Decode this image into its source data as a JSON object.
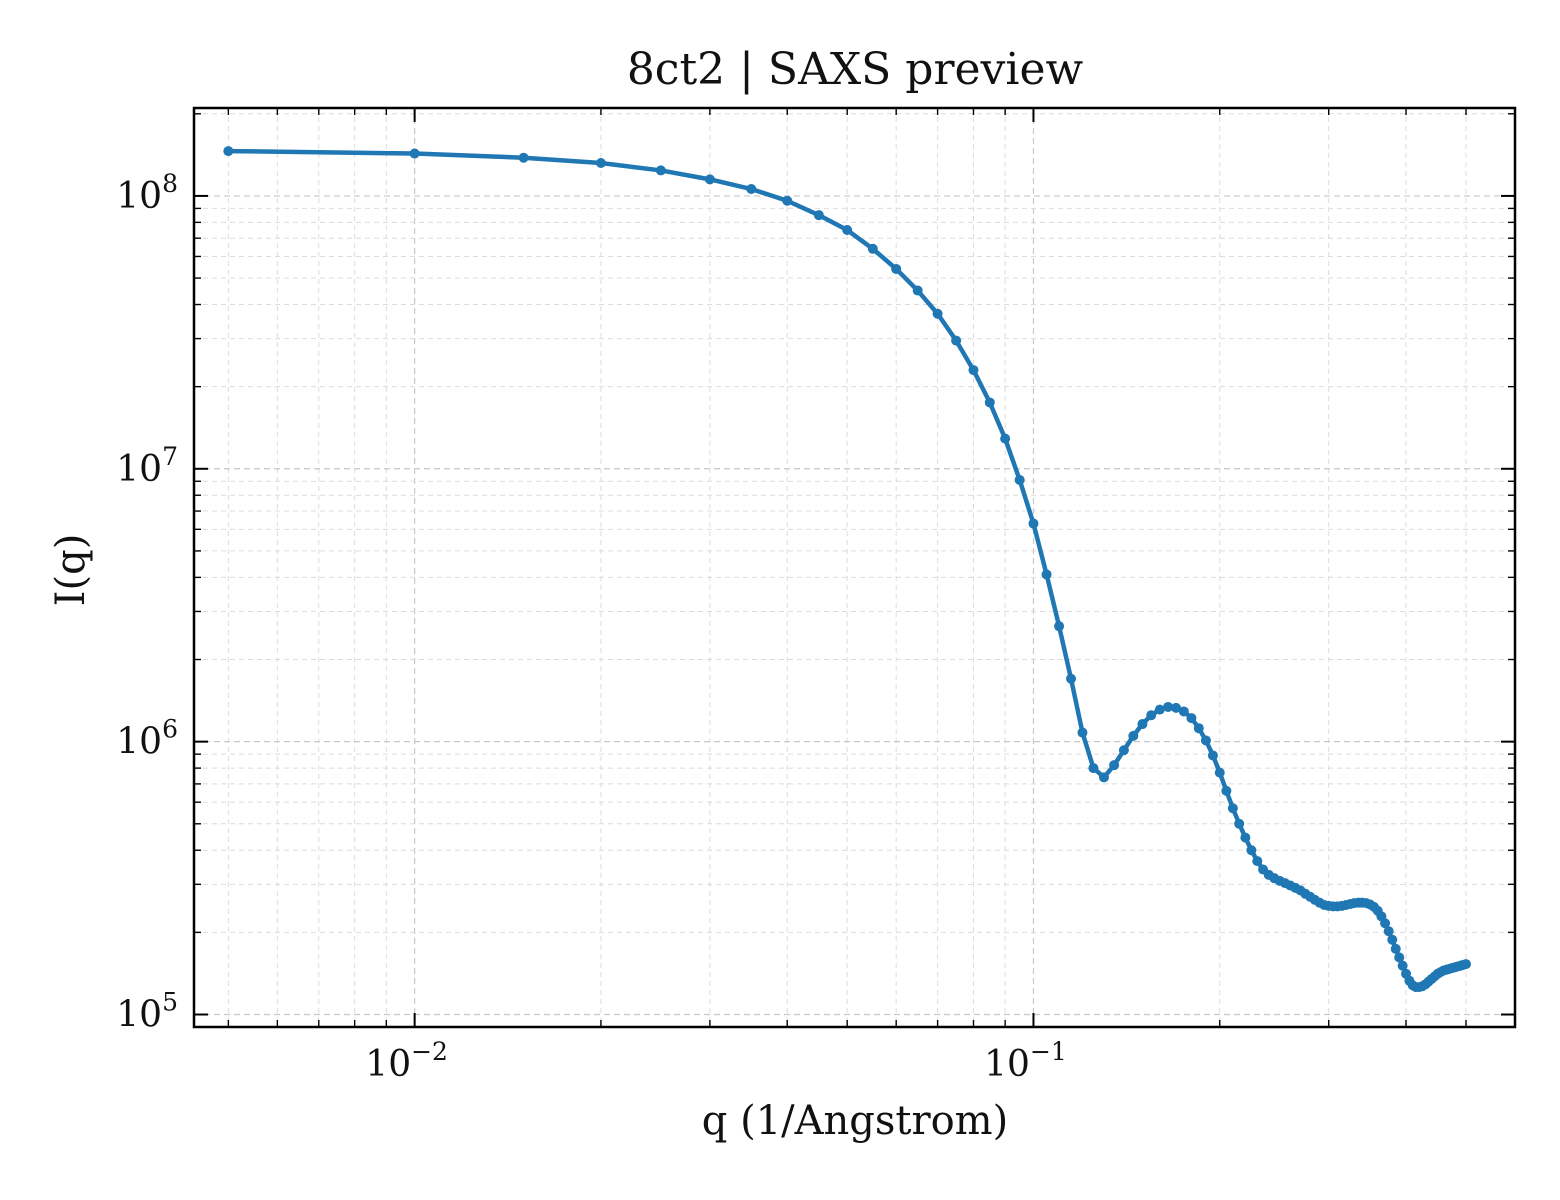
{
  "chart_data": {
    "type": "line",
    "title": "8ct2 | SAXS preview",
    "xlabel": "q (1/Angstrom)",
    "ylabel": "I(q)",
    "xscale": "log",
    "yscale": "log",
    "xlim": [
      0.0044,
      0.6
    ],
    "ylim": [
      90000,
      210000000
    ],
    "grid": true,
    "x_ticks": [
      {
        "base": "10",
        "exp": "−2",
        "value": 0.01
      },
      {
        "base": "10",
        "exp": "−1",
        "value": 0.1
      }
    ],
    "y_ticks": [
      {
        "base": "10",
        "exp": "5",
        "value": 100000
      },
      {
        "base": "10",
        "exp": "6",
        "value": 1000000
      },
      {
        "base": "10",
        "exp": "7",
        "value": 10000000
      },
      {
        "base": "10",
        "exp": "8",
        "value": 100000000
      }
    ],
    "color": "#1f77b4",
    "series": [
      {
        "x": [
          0.005,
          0.01,
          0.015,
          0.02,
          0.025,
          0.03,
          0.035,
          0.04,
          0.045,
          0.05,
          0.055,
          0.06,
          0.065,
          0.07,
          0.075,
          0.08,
          0.085,
          0.09,
          0.095,
          0.1,
          0.105,
          0.11,
          0.115,
          0.12,
          0.125,
          0.13,
          0.135,
          0.14,
          0.145,
          0.15,
          0.155,
          0.16,
          0.165,
          0.17,
          0.175,
          0.18,
          0.185,
          0.19,
          0.195,
          0.2,
          0.205,
          0.21,
          0.215,
          0.22,
          0.225,
          0.23,
          0.235,
          0.24,
          0.245,
          0.25,
          0.255,
          0.26,
          0.265,
          0.27,
          0.275,
          0.28,
          0.285,
          0.29,
          0.295,
          0.3,
          0.305,
          0.31,
          0.315,
          0.32,
          0.325,
          0.33,
          0.335,
          0.34,
          0.345,
          0.35,
          0.355,
          0.36,
          0.365,
          0.37,
          0.375,
          0.38,
          0.385,
          0.39,
          0.395,
          0.4,
          0.405,
          0.41,
          0.415,
          0.42,
          0.425,
          0.43,
          0.435,
          0.44,
          0.445,
          0.45,
          0.455,
          0.46,
          0.465,
          0.47,
          0.475,
          0.48,
          0.485,
          0.49,
          0.495,
          0.5
        ],
        "y": [
          146000000,
          143000000,
          138000000,
          132000000,
          124000000,
          115000000,
          106000000,
          96000000,
          85000000,
          75000000,
          64000000,
          54000000,
          45000000,
          37000000,
          29500000,
          23000000,
          17500000,
          12900000,
          9100000,
          6300000,
          4100000,
          2650000,
          1700000,
          1080000,
          800000,
          740000,
          820000,
          930000,
          1050000,
          1160000,
          1250000,
          1310000,
          1340000,
          1330000,
          1290000,
          1220000,
          1120000,
          1010000,
          890000,
          770000,
          660000,
          570000,
          500000,
          445000,
          400000,
          365000,
          340000,
          325000,
          316000,
          309000,
          303000,
          297000,
          291000,
          285000,
          277000,
          270000,
          263000,
          257000,
          252000,
          250000,
          249000,
          249000,
          250000,
          252000,
          254000,
          256000,
          257000,
          257000,
          256000,
          253000,
          248000,
          240000,
          229000,
          216000,
          202000,
          188000,
          174000,
          162000,
          151000,
          141000,
          133000,
          128000,
          126000,
          126000,
          127000,
          129000,
          132000,
          135000,
          138000,
          141000,
          143000,
          145000,
          146000,
          147000,
          148000,
          149000,
          150000,
          151000,
          152000,
          153000
        ]
      }
    ]
  }
}
